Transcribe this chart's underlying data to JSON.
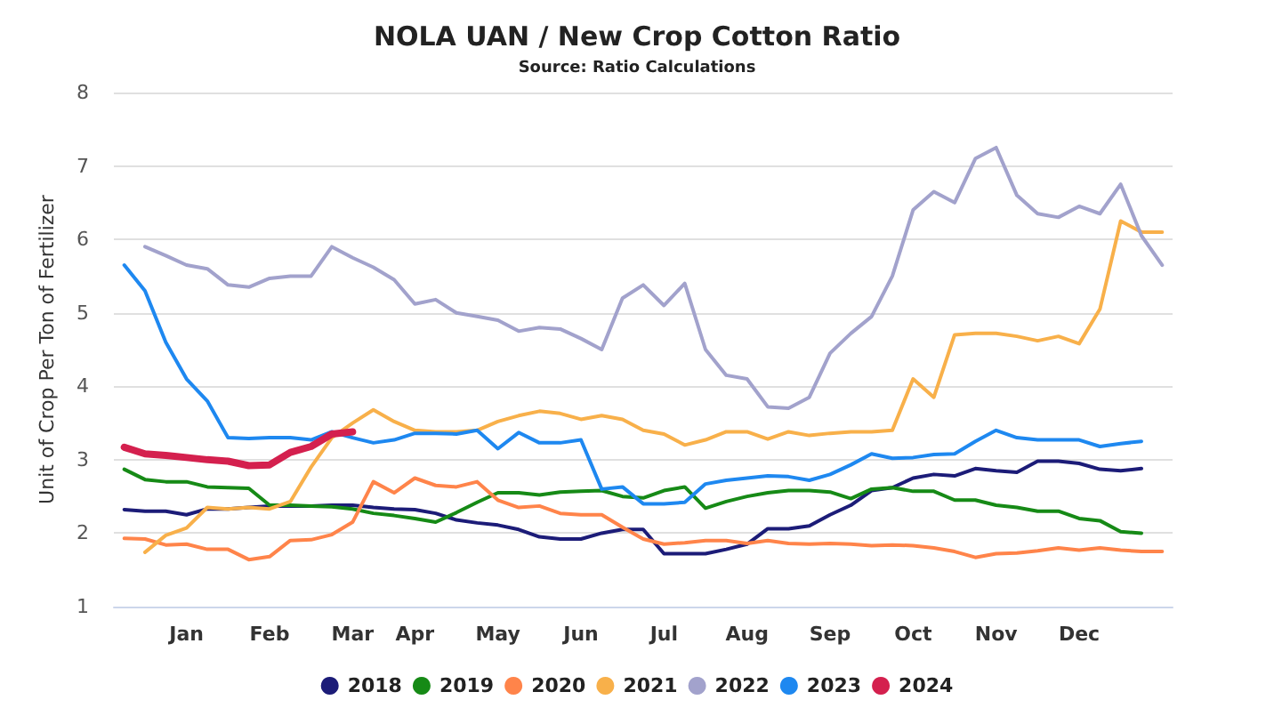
{
  "chart_data": {
    "type": "line",
    "title": "NOLA UAN / New Crop Cotton Ratio",
    "subtitle": "Source: Ratio Calculations",
    "ylabel": "Unit of Crop Per Ton of Fertilizer",
    "categories": [
      null,
      null,
      null,
      "Jan",
      null,
      null,
      null,
      "Feb",
      null,
      null,
      null,
      "Mar",
      null,
      null,
      "Apr",
      null,
      null,
      null,
      "May",
      null,
      null,
      null,
      "Jun",
      null,
      null,
      null,
      "Jul",
      null,
      null,
      null,
      "Aug",
      null,
      null,
      null,
      "Sep",
      null,
      null,
      null,
      "Oct",
      null,
      null,
      null,
      "Nov",
      null,
      null,
      null,
      "Dec",
      null,
      null,
      null,
      null
    ],
    "ylim": [
      1,
      8
    ],
    "yticks": [
      1,
      2,
      3,
      4,
      5,
      6,
      7,
      8
    ],
    "grid": "y",
    "legend": "bottom",
    "marker": "none",
    "line_style": "solid",
    "series": [
      {
        "name": "2018",
        "color": "#1c1c78",
        "values": [
          2.32,
          2.3,
          2.3,
          2.25,
          2.33,
          2.33,
          2.35,
          2.37,
          2.37,
          2.37,
          2.38,
          2.38,
          2.35,
          2.33,
          2.32,
          2.27,
          2.18,
          2.14,
          2.11,
          2.05,
          1.95,
          1.92,
          1.92,
          2.0,
          2.05,
          2.05,
          1.72,
          1.72,
          1.72,
          1.78,
          1.85,
          2.06,
          2.06,
          2.1,
          2.25,
          2.38,
          2.58,
          2.62,
          2.75,
          2.8,
          2.78,
          2.88,
          2.85,
          2.83,
          2.98,
          2.98,
          2.95,
          2.87,
          2.85,
          2.88,
          null
        ]
      },
      {
        "name": "2019",
        "color": "#168a16",
        "values": [
          2.87,
          2.73,
          2.7,
          2.7,
          2.63,
          2.62,
          2.61,
          2.38,
          2.38,
          2.37,
          2.36,
          2.33,
          2.27,
          2.24,
          2.2,
          2.15,
          2.28,
          2.42,
          2.55,
          2.55,
          2.52,
          2.56,
          2.57,
          2.58,
          2.5,
          2.48,
          2.58,
          2.63,
          2.34,
          2.43,
          2.5,
          2.55,
          2.58,
          2.58,
          2.56,
          2.47,
          2.6,
          2.62,
          2.57,
          2.57,
          2.45,
          2.45,
          2.38,
          2.35,
          2.3,
          2.3,
          2.2,
          2.17,
          2.02,
          2.0,
          null
        ]
      },
      {
        "name": "2020",
        "color": "#ff844a",
        "values": [
          1.93,
          1.92,
          1.84,
          1.85,
          1.78,
          1.78,
          1.64,
          1.68,
          1.9,
          1.91,
          1.98,
          2.15,
          2.7,
          2.55,
          2.75,
          2.65,
          2.63,
          2.7,
          2.45,
          2.35,
          2.37,
          2.27,
          2.25,
          2.25,
          2.08,
          1.92,
          1.85,
          1.87,
          1.9,
          1.9,
          1.86,
          1.9,
          1.86,
          1.85,
          1.86,
          1.85,
          1.83,
          1.84,
          1.83,
          1.8,
          1.75,
          1.67,
          1.72,
          1.73,
          1.76,
          1.8,
          1.77,
          1.8,
          1.77,
          1.75,
          1.75
        ]
      },
      {
        "name": "2021",
        "color": "#f8b04a",
        "values": [
          null,
          1.74,
          1.97,
          2.07,
          2.35,
          2.33,
          2.35,
          2.33,
          2.43,
          2.9,
          3.3,
          3.5,
          3.68,
          3.52,
          3.4,
          3.38,
          3.38,
          3.4,
          3.52,
          3.6,
          3.66,
          3.63,
          3.55,
          3.6,
          3.55,
          3.4,
          3.35,
          3.2,
          3.27,
          3.38,
          3.38,
          3.28,
          3.38,
          3.33,
          3.36,
          3.38,
          3.38,
          3.4,
          4.1,
          3.85,
          4.7,
          4.72,
          4.72,
          4.68,
          4.62,
          4.68,
          4.58,
          5.05,
          6.25,
          6.1,
          6.1
        ]
      },
      {
        "name": "2022",
        "color": "#a2a2cc",
        "values": [
          null,
          5.9,
          5.78,
          5.65,
          5.6,
          5.38,
          5.35,
          5.47,
          5.5,
          5.5,
          5.9,
          5.75,
          5.62,
          5.45,
          5.12,
          5.18,
          5.0,
          4.95,
          4.9,
          4.75,
          4.8,
          4.78,
          4.65,
          4.5,
          5.2,
          5.38,
          5.1,
          5.4,
          4.5,
          4.15,
          4.1,
          3.72,
          3.7,
          3.85,
          4.45,
          4.72,
          4.95,
          5.5,
          6.4,
          6.65,
          6.5,
          7.1,
          7.25,
          6.6,
          6.35,
          6.3,
          6.45,
          6.35,
          6.75,
          6.05,
          5.65
        ]
      },
      {
        "name": "2023",
        "color": "#1e88f0",
        "values": [
          5.65,
          5.3,
          4.6,
          4.1,
          3.8,
          3.3,
          3.29,
          3.3,
          3.3,
          3.27,
          3.38,
          3.3,
          3.23,
          3.27,
          3.36,
          3.36,
          3.35,
          3.4,
          3.15,
          3.37,
          3.23,
          3.23,
          3.27,
          2.6,
          2.63,
          2.4,
          2.4,
          2.42,
          2.67,
          2.72,
          2.75,
          2.78,
          2.77,
          2.72,
          2.8,
          2.93,
          3.08,
          3.02,
          3.03,
          3.07,
          3.08,
          3.25,
          3.4,
          3.3,
          3.27,
          3.27,
          3.27,
          3.18,
          3.22,
          3.25,
          null
        ]
      },
      {
        "name": "2024",
        "color": "#d4204e",
        "values": [
          3.17,
          3.08,
          3.06,
          3.03,
          3.0,
          2.98,
          2.92,
          2.93,
          3.1,
          3.18,
          3.35,
          3.38,
          null,
          null,
          null,
          null,
          null,
          null,
          null,
          null,
          null,
          null,
          null,
          null,
          null,
          null,
          null,
          null,
          null,
          null,
          null,
          null,
          null,
          null,
          null,
          null,
          null,
          null,
          null,
          null,
          null,
          null,
          null,
          null,
          null,
          null,
          null,
          null,
          null,
          null,
          null
        ]
      }
    ]
  }
}
